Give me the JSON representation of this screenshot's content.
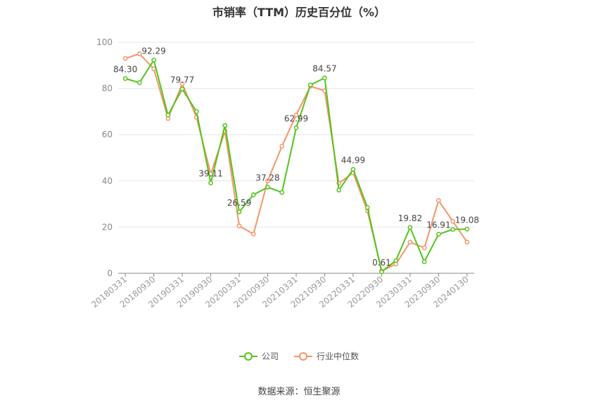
{
  "chart_data": {
    "type": "line",
    "title": "市销率（TTM）历史百分位（%）",
    "source": "数据来源：恒生聚源",
    "ylim": [
      0,
      100
    ],
    "yticks": [
      0,
      20,
      40,
      60,
      80,
      100
    ],
    "grid": true,
    "legend_position": "bottom",
    "categories": [
      "20180331",
      "20180630",
      "20180930",
      "20181231",
      "20190331",
      "20190630",
      "20190930",
      "20191231",
      "20200331",
      "20200630",
      "20200930",
      "20201231",
      "20210331",
      "20210630",
      "20210930",
      "20211231",
      "20220331",
      "20220630",
      "20220930",
      "20221231",
      "20230331",
      "20230630",
      "20230930",
      "20231231",
      "20240130"
    ],
    "tick_labels": [
      "20180331",
      "20180930",
      "20190331",
      "20190930",
      "20200331",
      "20200930",
      "20210331",
      "20210930",
      "20220331",
      "20220930",
      "20230331",
      "20230930",
      "20240130"
    ],
    "series": [
      {
        "name": "公司",
        "color": "#52c41a",
        "values": [
          84.3,
          82.5,
          92.29,
          68.5,
          79.77,
          70.0,
          39.11,
          64.0,
          26.59,
          34.0,
          37.28,
          35.0,
          62.99,
          81.5,
          84.57,
          36.0,
          44.99,
          28.5,
          0.61,
          5.5,
          19.82,
          5.0,
          16.91,
          19.0,
          19.08
        ],
        "labels": {
          "0": "84.30",
          "2": "92.29",
          "4": "79.77",
          "6": "39.11",
          "8": "26.59",
          "10": "37.28",
          "12": "62.99",
          "14": "84.57",
          "16": "44.99",
          "18": "0.61",
          "20": "19.82",
          "22": "16.91",
          "24": "19.08"
        }
      },
      {
        "name": "行业中位数",
        "color": "#f4956a",
        "values": [
          93.0,
          95.0,
          88.5,
          67.0,
          82.0,
          67.5,
          43.0,
          61.5,
          20.5,
          17.0,
          40.0,
          55.0,
          68.5,
          81.0,
          79.0,
          39.0,
          43.5,
          27.0,
          1.0,
          4.0,
          13.5,
          11.0,
          31.5,
          22.5,
          13.5
        ]
      }
    ]
  }
}
